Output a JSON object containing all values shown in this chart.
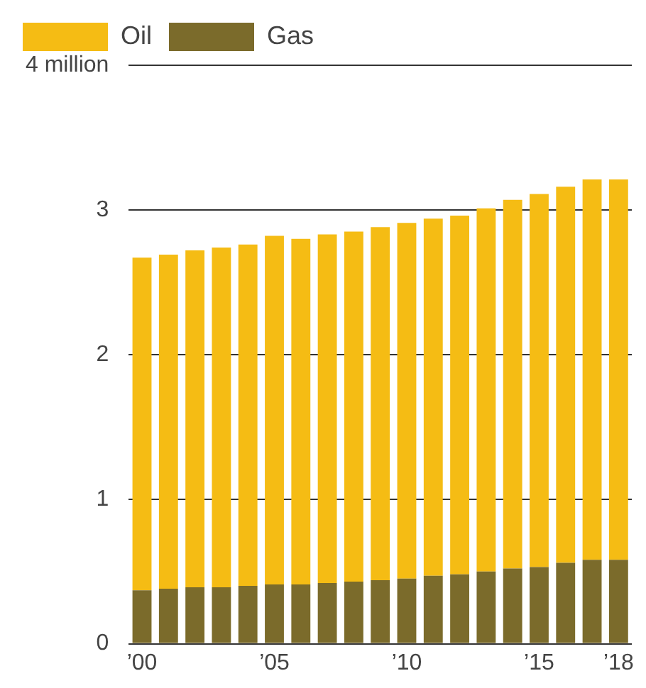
{
  "chart_data": {
    "type": "bar",
    "stacked": true,
    "categories": [
      "’00",
      null,
      null,
      null,
      null,
      "’05",
      null,
      null,
      null,
      null,
      "’10",
      null,
      null,
      null,
      null,
      "’15",
      null,
      null,
      "’18"
    ],
    "series": [
      {
        "name": "Gas",
        "color": "#7b6b2b",
        "values": [
          0.37,
          0.38,
          0.39,
          0.39,
          0.4,
          0.41,
          0.41,
          0.42,
          0.43,
          0.44,
          0.45,
          0.47,
          0.48,
          0.5,
          0.52,
          0.53,
          0.56,
          0.58,
          0.58
        ]
      },
      {
        "name": "Oil",
        "color": "#f5bc14",
        "values": [
          2.3,
          2.31,
          2.33,
          2.35,
          2.36,
          2.41,
          2.39,
          2.41,
          2.42,
          2.44,
          2.46,
          2.47,
          2.48,
          2.51,
          2.55,
          2.58,
          2.6,
          2.63,
          2.63
        ]
      }
    ],
    "ylim": [
      0,
      4
    ],
    "yticks": [
      0,
      1,
      2,
      3,
      {
        "value": 4,
        "label": "4 million"
      }
    ],
    "grid": "y",
    "legend": "top left"
  }
}
